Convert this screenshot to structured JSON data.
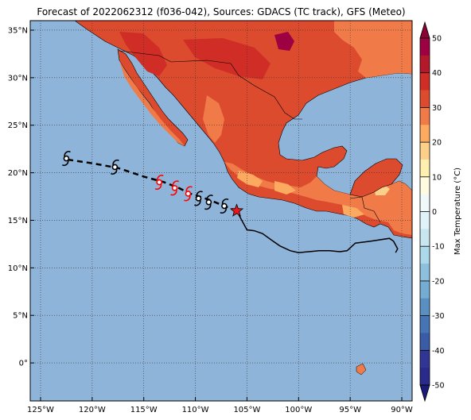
{
  "title": "Forecast of 2022062312 (f036-042), Sources: GDACS (TC track), GFS (Meteo)",
  "map": {
    "lon_range": [
      -126,
      -89
    ],
    "lat_range": [
      -4,
      36
    ],
    "lon_ticks": [
      {
        "value": -125,
        "label": "125°W"
      },
      {
        "value": -120,
        "label": "120°W"
      },
      {
        "value": -115,
        "label": "115°W"
      },
      {
        "value": -110,
        "label": "110°W"
      },
      {
        "value": -105,
        "label": "105°W"
      },
      {
        "value": -100,
        "label": "100°W"
      },
      {
        "value": -95,
        "label": "95°W"
      },
      {
        "value": -90,
        "label": "90°W"
      }
    ],
    "lat_ticks": [
      {
        "value": 35,
        "label": "35°N"
      },
      {
        "value": 30,
        "label": "30°N"
      },
      {
        "value": 25,
        "label": "25°N"
      },
      {
        "value": 20,
        "label": "20°N"
      },
      {
        "value": 15,
        "label": "15°N"
      },
      {
        "value": 10,
        "label": "10°N"
      },
      {
        "value": 5,
        "label": "5°N"
      },
      {
        "value": 0,
        "label": "0°"
      }
    ],
    "ocean_color": "#8fb4d9",
    "gridlines": "dotted"
  },
  "colorbar": {
    "label": "Max Temperature (°C)",
    "ticks": [
      50,
      40,
      30,
      20,
      10,
      0,
      -10,
      -20,
      -30,
      -40,
      -50
    ],
    "levels": [
      {
        "from": 45,
        "to": 50,
        "color": "#9e0142"
      },
      {
        "from": 40,
        "to": 45,
        "color": "#b3182b"
      },
      {
        "from": 35,
        "to": 40,
        "color": "#cf2d26"
      },
      {
        "from": 30,
        "to": 35,
        "color": "#dd4b2e"
      },
      {
        "from": 25,
        "to": 30,
        "color": "#f07b48"
      },
      {
        "from": 20,
        "to": 25,
        "color": "#fbaa5f"
      },
      {
        "from": 15,
        "to": 20,
        "color": "#fdd08a"
      },
      {
        "from": 10,
        "to": 15,
        "color": "#fff0b0"
      },
      {
        "from": 5,
        "to": 10,
        "color": "#fffbe0"
      },
      {
        "from": 0,
        "to": 5,
        "color": "#f0f8fa"
      },
      {
        "from": -5,
        "to": 0,
        "color": "#e0f3f8"
      },
      {
        "from": -10,
        "to": -5,
        "color": "#c7e6f0"
      },
      {
        "from": -15,
        "to": -10,
        "color": "#abd9e9"
      },
      {
        "from": -20,
        "to": -15,
        "color": "#8cc0dc"
      },
      {
        "from": -25,
        "to": -20,
        "color": "#74add1"
      },
      {
        "from": -30,
        "to": -25,
        "color": "#5a8fc2"
      },
      {
        "from": -35,
        "to": -30,
        "color": "#4575b4"
      },
      {
        "from": -40,
        "to": -35,
        "color": "#3a5ba6"
      },
      {
        "from": -45,
        "to": -40,
        "color": "#313695"
      },
      {
        "from": -50,
        "to": -45,
        "color": "#2a2a8a"
      }
    ],
    "extend_colors": {
      "top": "#8b0036",
      "bottom": "#1a1a7a"
    }
  },
  "track": {
    "past": [
      [
        -106.0,
        16.0
      ],
      [
        -105.3,
        14.6
      ],
      [
        -105.0,
        14.0
      ],
      [
        -104.3,
        13.9
      ],
      [
        -103.5,
        13.6
      ],
      [
        -102.6,
        12.9
      ],
      [
        -101.8,
        12.3
      ],
      [
        -100.8,
        11.8
      ],
      [
        -100.0,
        11.6
      ],
      [
        -99.0,
        11.7
      ],
      [
        -98.0,
        11.8
      ],
      [
        -97.0,
        11.8
      ],
      [
        -96.0,
        11.7
      ],
      [
        -95.3,
        11.8
      ],
      [
        -94.5,
        12.6
      ],
      [
        -93.0,
        12.8
      ],
      [
        -91.2,
        13.1
      ],
      [
        -90.8,
        12.8
      ],
      [
        -90.4,
        12.0
      ],
      [
        -90.6,
        11.6
      ]
    ],
    "forecast": [
      [
        -106.0,
        16.0
      ],
      [
        -107.2,
        16.5
      ],
      [
        -108.3,
        17.0
      ],
      [
        -109.3,
        17.4
      ],
      [
        -110.5,
        17.8
      ],
      [
        -111.6,
        18.4
      ],
      [
        -113.0,
        19.0
      ],
      [
        -115.0,
        19.6
      ],
      [
        -117.5,
        20.5
      ],
      [
        -120.0,
        21.0
      ],
      [
        -122.5,
        21.4
      ]
    ],
    "current_position": [
      -106.0,
      16.0
    ],
    "storm_symbols": [
      {
        "lon": -122.5,
        "lat": 21.5,
        "color": "#000000"
      },
      {
        "lon": -117.8,
        "lat": 20.6,
        "color": "#000000"
      },
      {
        "lon": -113.5,
        "lat": 19.0,
        "color": "#ff0000"
      },
      {
        "lon": -112.0,
        "lat": 18.4,
        "color": "#ff0000"
      },
      {
        "lon": -110.7,
        "lat": 17.8,
        "color": "#ff0000"
      },
      {
        "lon": -109.7,
        "lat": 17.3,
        "color": "#000000"
      },
      {
        "lon": -108.7,
        "lat": 16.9,
        "color": "#000000"
      },
      {
        "lon": -107.2,
        "lat": 16.5,
        "color": "#000000"
      }
    ]
  }
}
